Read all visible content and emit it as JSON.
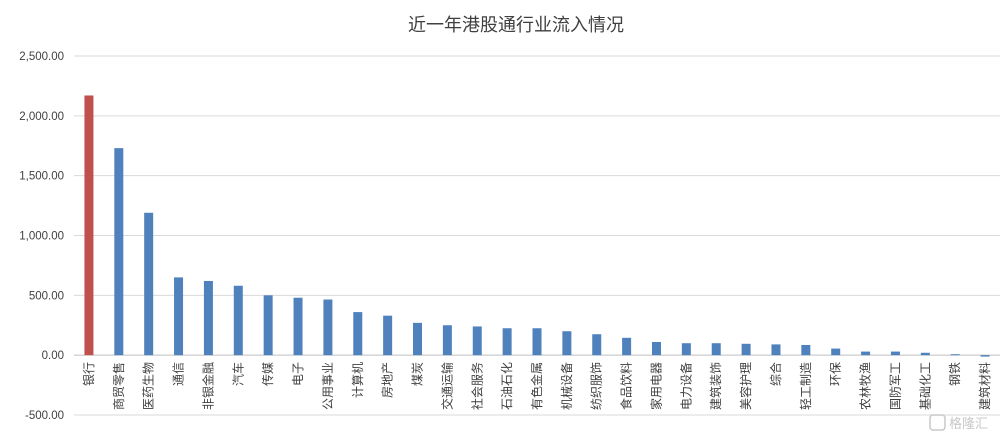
{
  "chart_data": {
    "type": "bar",
    "title": "近一年港股通行业流入情况",
    "ylim": [
      -500,
      2500
    ],
    "yticks": [
      -500,
      0,
      500,
      1000,
      1500,
      2000,
      2500
    ],
    "ytick_labels": [
      "-500.00",
      "0.00",
      "500.00",
      "1,000.00",
      "1,500.00",
      "2,000.00",
      "2,500.00"
    ],
    "grid": true,
    "legend": "none",
    "categories": [
      "银行",
      "商贸零售",
      "医药生物",
      "通信",
      "非银金融",
      "汽车",
      "传媒",
      "电子",
      "公用事业",
      "计算机",
      "房地产",
      "煤炭",
      "交通运输",
      "社会服务",
      "石油石化",
      "有色金属",
      "机械设备",
      "纺织服饰",
      "食品饮料",
      "家用电器",
      "电力设备",
      "建筑装饰",
      "美容护理",
      "综合",
      "轻工制造",
      "环保",
      "农林牧渔",
      "国防军工",
      "基础化工",
      "钢铁",
      "建筑材料"
    ],
    "values": [
      2170,
      1730,
      1190,
      650,
      620,
      580,
      500,
      480,
      465,
      360,
      330,
      270,
      250,
      240,
      225,
      225,
      200,
      175,
      145,
      110,
      100,
      100,
      95,
      90,
      85,
      55,
      30,
      30,
      20,
      8,
      -12
    ],
    "colors": {
      "highlight": "#c0504d",
      "default": "#4f81bd"
    },
    "highlight_index": 0
  },
  "watermark": {
    "text": "格隆汇",
    "icon": "logo-g-icon"
  }
}
